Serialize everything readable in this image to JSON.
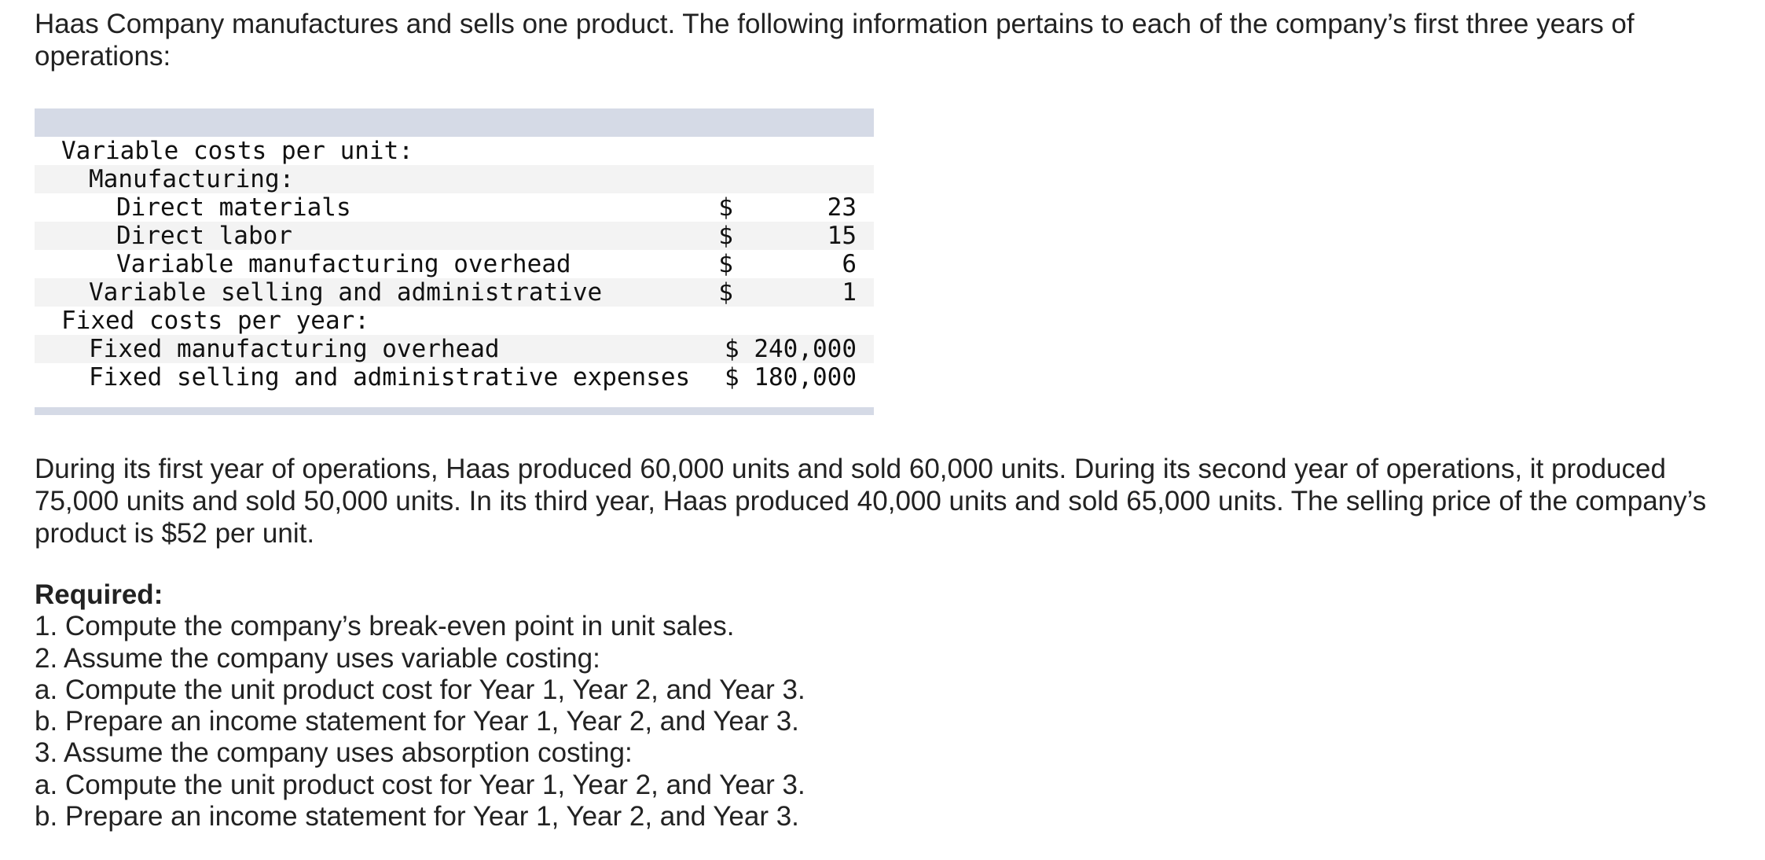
{
  "intro": "Haas Company manufactures and sells one product. The following information pertains to each of the company’s first three years of operations:",
  "table": {
    "rows": [
      {
        "label": "Variable costs per unit:",
        "dollar": "",
        "amount": "",
        "indent": 0
      },
      {
        "label": "Manufacturing:",
        "dollar": "",
        "amount": "",
        "indent": 1
      },
      {
        "label": "Direct materials",
        "dollar": "$",
        "amount": "23",
        "indent": 2
      },
      {
        "label": "Direct labor",
        "dollar": "$",
        "amount": "15",
        "indent": 2
      },
      {
        "label": "Variable manufacturing overhead",
        "dollar": "$",
        "amount": "6",
        "indent": 2
      },
      {
        "label": "Variable selling and administrative",
        "dollar": "$",
        "amount": "1",
        "indent": 1
      },
      {
        "label": "Fixed costs per year:",
        "dollar": "",
        "amount": "",
        "indent": 0
      },
      {
        "label": "Fixed manufacturing overhead",
        "dollar": "",
        "amount": "$ 240,000",
        "indent": 1
      },
      {
        "label": "Fixed selling and administrative expenses",
        "dollar": "",
        "amount": "$ 180,000",
        "indent": 1
      }
    ]
  },
  "paragraph": "During its first year of operations, Haas produced 60,000 units and sold 60,000 units. During its second year of operations, it produced 75,000 units and sold 50,000 units. In its third year, Haas produced 40,000 units and sold 65,000 units. The selling price of the company’s product is $52 per unit.",
  "required": {
    "title": "Required:",
    "items": [
      "1. Compute the company’s break-even point in unit sales.",
      "2. Assume the company uses variable costing:",
      "a. Compute the unit product cost for Year 1, Year 2, and Year 3.",
      "b. Prepare an income statement for Year 1, Year 2, and Year 3.",
      "3. Assume the company uses absorption costing:",
      "a. Compute the unit product cost for Year 1, Year 2, and Year 3.",
      "b. Prepare an income statement for Year 1, Year 2, and Year 3."
    ]
  }
}
